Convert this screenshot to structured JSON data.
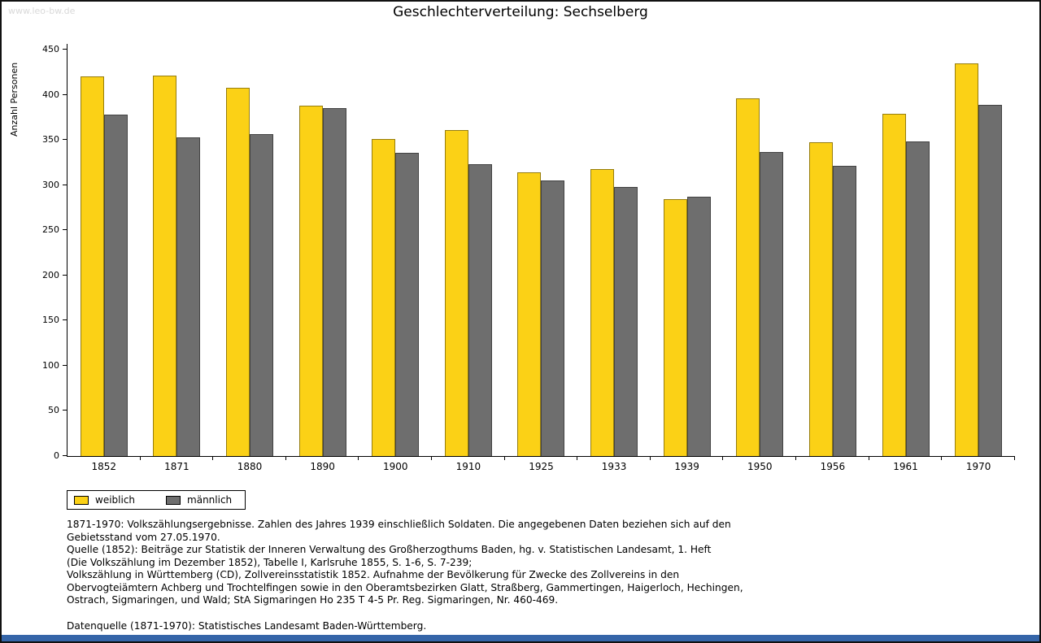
{
  "watermark": "www.leo-bw.de",
  "title": "Geschlechterverteilung: Sechselberg",
  "chart_data": {
    "type": "bar",
    "title": "Geschlechterverteilung: Sechselberg",
    "xlabel": "",
    "ylabel": "Anzahl Personen",
    "ylim": [
      0,
      450
    ],
    "ytick_step": 50,
    "grid": false,
    "legend_position": "bottom-left",
    "categories": [
      "1852",
      "1871",
      "1880",
      "1890",
      "1900",
      "1910",
      "1925",
      "1933",
      "1939",
      "1950",
      "1956",
      "1961",
      "1970"
    ],
    "series": [
      {
        "key": "weiblich",
        "name": "weiblich",
        "color": "#FBD116",
        "values": [
          420,
          421,
          408,
          388,
          351,
          361,
          314,
          318,
          284,
          396,
          347,
          379,
          435
        ]
      },
      {
        "key": "maennlich",
        "name": "männlich",
        "color": "#6E6E6E",
        "values": [
          378,
          353,
          356,
          385,
          336,
          323,
          305,
          298,
          287,
          337,
          321,
          348,
          389
        ]
      }
    ]
  },
  "legend": {
    "items": [
      {
        "key": "weiblich",
        "label": "weiblich",
        "color": "#FBD116"
      },
      {
        "key": "maennlich",
        "label": "männlich",
        "color": "#6E6E6E"
      }
    ]
  },
  "footnotes": {
    "lines": [
      "1871-1970: Volkszählungsergebnisse. Zahlen des Jahres 1939 einschließlich Soldaten. Die angegebenen Daten beziehen sich auf den",
      "Gebietsstand vom 27.05.1970.",
      "Quelle (1852): Beiträge zur Statistik der Inneren Verwaltung des Großherzogthums Baden, hg. v. Statistischen Landesamt, 1. Heft",
      "(Die Volkszählung im Dezember 1852), Tabelle I, Karlsruhe 1855, S. 1-6, S. 7-239;",
      "Volkszählung in Württemberg (CD), Zollvereinsstatistik 1852. Aufnahme der Bevölkerung für Zwecke des Zollvereins in den",
      "Obervogteiämtern Achberg und Trochtelfingen sowie in den Oberamtsbezirken Glatt, Straßberg, Gammertingen, Haigerloch, Hechingen,",
      "Ostrach, Sigmaringen, und Wald; StA Sigmaringen Ho 235 T 4-5 Pr. Reg. Sigmaringen, Nr. 460-469."
    ],
    "datasource": "Datenquelle (1871-1970): Statistisches Landesamt Baden-Württemberg."
  },
  "colors": {
    "weiblich": "#FBD116",
    "maennlich": "#6E6E6E",
    "bottom_bar": "#3565A8",
    "axis": "#000000",
    "watermark": "#D9D9D9"
  }
}
